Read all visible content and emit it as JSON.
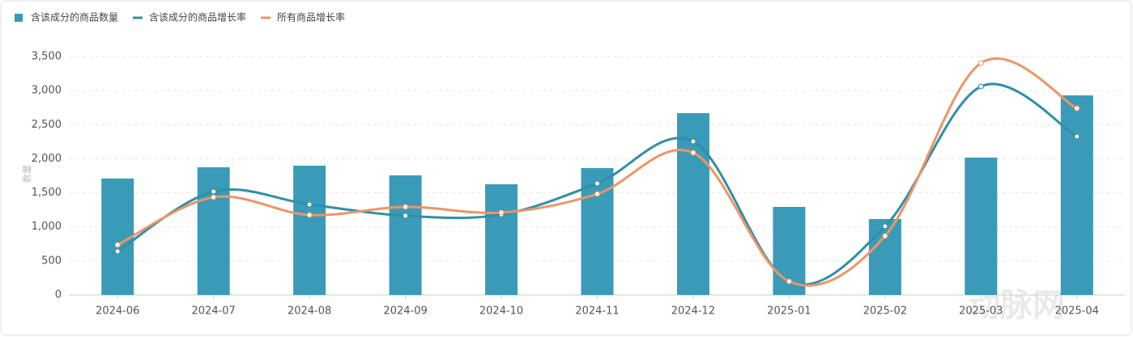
{
  "chart_data": {
    "type": "bar-line",
    "y_label": "数量",
    "categories": [
      "2024-06",
      "2024-07",
      "2024-08",
      "2024-09",
      "2024-10",
      "2024-11",
      "2024-12",
      "2025-01",
      "2025-02",
      "2025-03",
      "2025-04"
    ],
    "series": [
      {
        "name": "含该成分的商品数量",
        "type": "bar",
        "color": "#3a9bb8",
        "values": [
          1710,
          1875,
          1898,
          1756,
          1625,
          1863,
          2669,
          1293,
          1115,
          2017,
          2930
        ]
      },
      {
        "name": "含该成分的商品增长率",
        "type": "line",
        "color": "#2f8fa8",
        "values": [
          640,
          1519,
          1329,
          1163,
          1180,
          1637,
          2254,
          200,
          1008,
          3061,
          2325
        ]
      },
      {
        "name": "所有商品增长率",
        "type": "line",
        "color": "#ee9466",
        "values": [
          735,
          1435,
          1175,
          1293,
          1210,
          1483,
          2088,
          200,
          866,
          3405,
          2740
        ]
      }
    ],
    "ylim": [
      0,
      3500
    ],
    "yticks": [
      0,
      500,
      {
        "value": 1000,
        "label": "1,000"
      },
      {
        "value": 1500,
        "label": "1,500"
      },
      {
        "value": 2000,
        "label": "2,000"
      },
      {
        "value": 2500,
        "label": "2,500"
      },
      {
        "value": 3000,
        "label": "3,000"
      },
      {
        "value": 3500,
        "label": "3,500"
      }
    ],
    "grid": true
  },
  "watermark": "动脉网"
}
